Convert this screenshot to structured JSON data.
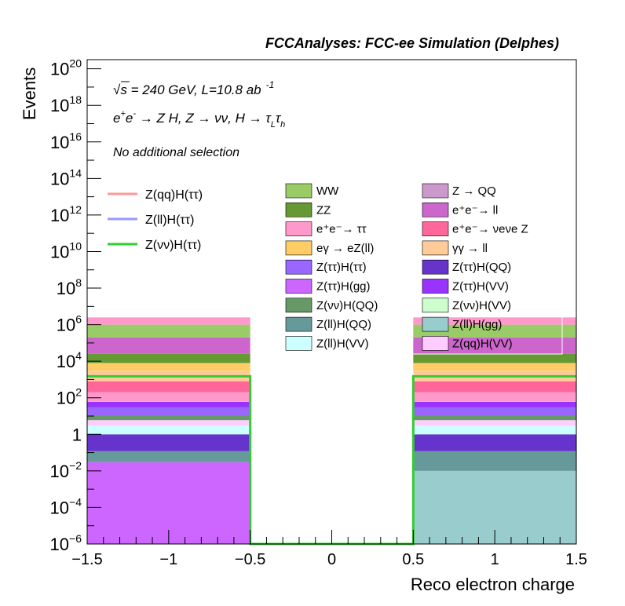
{
  "header": {
    "title": "FCCAnalyses: FCC-ee Simulation (Delphes)"
  },
  "annotations": {
    "energy_prefix": "√",
    "energy_s": "s",
    "energy_rest": " = 240 GeV, L=10.8 ab",
    "energy_exp": "-1",
    "process_a": "e",
    "process_b": "e",
    "process_c": " → Z H, Z  → νν, H  → τ",
    "process_sub_l": "L",
    "process_tau2": "τ",
    "process_sub_h": "h",
    "selection": "No additional selection"
  },
  "legend_signal": [
    {
      "label": "Z(qq)H(ττ)",
      "color": "#ff9999"
    },
    {
      "label": "Z(ll)H(ττ)",
      "color": "#9999ff"
    },
    {
      "label": "Z(νν)H(ττ)",
      "color": "#33cc33"
    }
  ],
  "legend_bkg_col1": [
    {
      "label": "WW",
      "color": "#99cc66"
    },
    {
      "label": "ZZ",
      "color": "#669933"
    },
    {
      "label": "e⁺e⁻→ ττ",
      "color": "#ff99cc"
    },
    {
      "label": "eγ → eZ(ll)",
      "color": "#ffcc66"
    },
    {
      "label": "Z(ττ)H(ττ)",
      "color": "#9966ff"
    },
    {
      "label": "Z(ττ)H(gg)",
      "color": "#cc66ff"
    },
    {
      "label": "Z(νν)H(QQ)",
      "color": "#669966"
    },
    {
      "label": "Z(ll)H(QQ)",
      "color": "#669999"
    },
    {
      "label": "Z(ll)H(VV)",
      "color": "#ccffff"
    }
  ],
  "legend_bkg_col2": [
    {
      "label": "Z → QQ",
      "color": "#cc99cc"
    },
    {
      "label": "e⁺e⁻→ ll",
      "color": "#cc66cc"
    },
    {
      "label": "e⁺e⁻→ νeνe Z",
      "color": "#ff6699"
    },
    {
      "label": "γγ → ll",
      "color": "#ffcc99"
    },
    {
      "label": "Z(ττ)H(QQ)",
      "color": "#6633cc"
    },
    {
      "label": "Z(ττ)H(VV)",
      "color": "#9933ff"
    },
    {
      "label": "Z(νν)H(VV)",
      "color": "#ccffcc"
    },
    {
      "label": "Z(ll)H(gg)",
      "color": "#99cccc"
    },
    {
      "label": "Z(qq)H(VV)",
      "color": "#ffccff"
    }
  ],
  "chart_data": {
    "type": "bar",
    "stacked": true,
    "xlabel": "Reco electron charge",
    "ylabel": "Events",
    "xlim": [
      -1.5,
      1.5
    ],
    "ylim_log10": [
      -6,
      20.5
    ],
    "y_scale": "log",
    "bins": [
      [
        -1.5,
        -0.5
      ],
      [
        -0.5,
        0.5
      ],
      [
        0.5,
        1.5
      ]
    ],
    "x_ticks": [
      "−1.5",
      "−1",
      "−0.5",
      "0",
      "0.5",
      "1",
      "1.5"
    ],
    "x_tick_values": [
      -1.5,
      -1,
      -0.5,
      0,
      0.5,
      1,
      1.5
    ],
    "y_ticks": [
      {
        "value": -6,
        "base": "10",
        "exp": "−6"
      },
      {
        "value": -4,
        "base": "10",
        "exp": "−4"
      },
      {
        "value": -2,
        "base": "10",
        "exp": "−2"
      },
      {
        "value": 0,
        "base": "1",
        "exp": ""
      },
      {
        "value": 2,
        "base": "10",
        "exp": "2"
      },
      {
        "value": 4,
        "base": "10",
        "exp": "4"
      },
      {
        "value": 6,
        "base": "10",
        "exp": "6"
      },
      {
        "value": 8,
        "base": "10",
        "exp": "8"
      },
      {
        "value": 10,
        "base": "10",
        "exp": "10"
      },
      {
        "value": 12,
        "base": "10",
        "exp": "12"
      },
      {
        "value": 14,
        "base": "10",
        "exp": "14"
      },
      {
        "value": 16,
        "base": "10",
        "exp": "16"
      },
      {
        "value": 18,
        "base": "10",
        "exp": "18"
      },
      {
        "value": 20,
        "base": "10",
        "exp": "20"
      }
    ],
    "stack_left": [
      {
        "color": "#cc66ff",
        "top": 0.03
      },
      {
        "color": "#669999",
        "top": 0.12
      },
      {
        "color": "#6633cc",
        "top": 1.0
      },
      {
        "color": "#ccffff",
        "top": 3.0
      },
      {
        "color": "#ffccff",
        "top": 6.0
      },
      {
        "color": "#669966",
        "top": 10.0
      },
      {
        "color": "#9966ff",
        "top": 30.0
      },
      {
        "color": "#9933ff",
        "top": 60.0
      },
      {
        "color": "#ff99cc",
        "top": 200.0
      },
      {
        "color": "#ff6699",
        "top": 800.0
      },
      {
        "color": "#ffcc99",
        "top": 3000.0
      },
      {
        "color": "#ffcc66",
        "top": 8000.0
      },
      {
        "color": "#669933",
        "top": 25000.0
      },
      {
        "color": "#cc66cc",
        "top": 200000.0
      },
      {
        "color": "#99cc66",
        "top": 1000000.0
      },
      {
        "color": "#ff99cc",
        "top": 2500000.0
      }
    ],
    "stack_right": [
      {
        "color": "#99cccc",
        "top": 0.01
      },
      {
        "color": "#669999",
        "top": 0.12
      },
      {
        "color": "#6633cc",
        "top": 1.0
      },
      {
        "color": "#ccffff",
        "top": 3.0
      },
      {
        "color": "#ffccff",
        "top": 6.0
      },
      {
        "color": "#669966",
        "top": 10.0
      },
      {
        "color": "#9966ff",
        "top": 30.0
      },
      {
        "color": "#9933ff",
        "top": 60.0
      },
      {
        "color": "#ff99cc",
        "top": 200.0
      },
      {
        "color": "#ff6699",
        "top": 800.0
      },
      {
        "color": "#ffcc99",
        "top": 3000.0
      },
      {
        "color": "#ffcc66",
        "top": 8000.0
      },
      {
        "color": "#669933",
        "top": 25000.0
      },
      {
        "color": "#cc66cc",
        "top": 200000.0
      },
      {
        "color": "#99cc66",
        "top": 1000000.0
      },
      {
        "color": "#ff99cc",
        "top": 2500000.0
      }
    ],
    "signal_line": {
      "name": "Z(νν)H(ττ)",
      "color": "#33cc33",
      "values": [
        1500,
        1e-06,
        1500
      ]
    }
  }
}
